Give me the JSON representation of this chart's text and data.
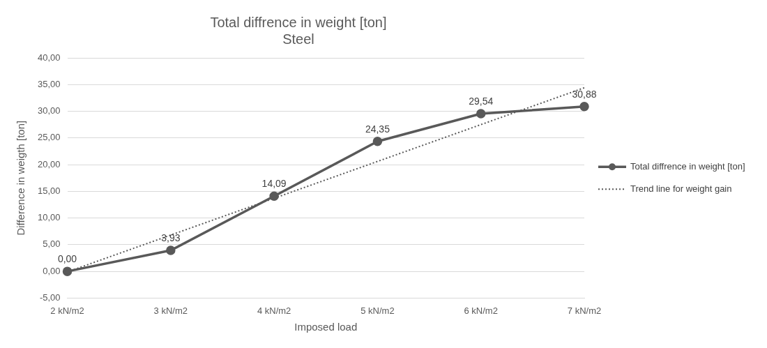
{
  "chart_data": {
    "type": "line",
    "title": "Total diffrence in weight [ton]",
    "subtitle": "Steel",
    "xlabel": "Imposed load",
    "ylabel": "Difference in weigth [ton]",
    "categories": [
      "2 kN/m2",
      "3 kN/m2",
      "4 kN/m2",
      "5 kN/m2",
      "6 kN/m2",
      "7 kN/m2"
    ],
    "series": [
      {
        "name": "Total diffrence in weight [ton]",
        "color": "#595959",
        "values": [
          0,
          3.93,
          14.09,
          24.35,
          29.54,
          30.88
        ],
        "value_labels": [
          "0,00",
          "3,93",
          "14,09",
          "24,35",
          "29,54",
          "30,88"
        ],
        "marker": "circle",
        "line_style": "solid"
      },
      {
        "name": "Trend line for weight gain",
        "color": "#595959",
        "values": [
          -0.1,
          6.8,
          13.7,
          20.6,
          27.5,
          34.4
        ],
        "marker": "none",
        "line_style": "dotted"
      }
    ],
    "ylim": [
      -5,
      40
    ],
    "yticks": [
      {
        "value": -5,
        "label": "-5,00"
      },
      {
        "value": 0,
        "label": "0,00"
      },
      {
        "value": 5,
        "label": "5,00"
      },
      {
        "value": 10,
        "label": "10,00"
      },
      {
        "value": 15,
        "label": "15,00"
      },
      {
        "value": 20,
        "label": "20,00"
      },
      {
        "value": 25,
        "label": "25,00"
      },
      {
        "value": 30,
        "label": "30,00"
      },
      {
        "value": 35,
        "label": "35,00"
      },
      {
        "value": 40,
        "label": "40,00"
      }
    ],
    "grid": "y",
    "legend": "right"
  }
}
